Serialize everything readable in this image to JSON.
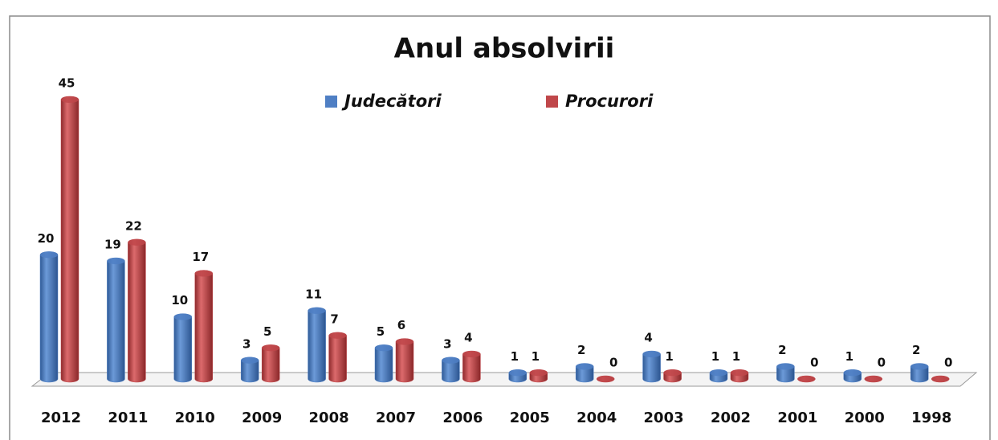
{
  "chart_data": {
    "type": "bar3d",
    "title": "Anul absolvirii",
    "categories": [
      "2012",
      "2011",
      "2010",
      "2009",
      "2008",
      "2007",
      "2006",
      "2005",
      "2004",
      "2003",
      "2002",
      "2001",
      "2000",
      "1998"
    ],
    "series": [
      {
        "name": "Judecători",
        "color": "#4f7fc4",
        "values": [
          20,
          19,
          10,
          3,
          11,
          5,
          3,
          1,
          2,
          4,
          1,
          2,
          1,
          2
        ]
      },
      {
        "name": "Procurori",
        "color": "#c0474a",
        "values": [
          45,
          22,
          17,
          5,
          7,
          6,
          4,
          1,
          0,
          1,
          1,
          0,
          0,
          0
        ]
      }
    ]
  }
}
